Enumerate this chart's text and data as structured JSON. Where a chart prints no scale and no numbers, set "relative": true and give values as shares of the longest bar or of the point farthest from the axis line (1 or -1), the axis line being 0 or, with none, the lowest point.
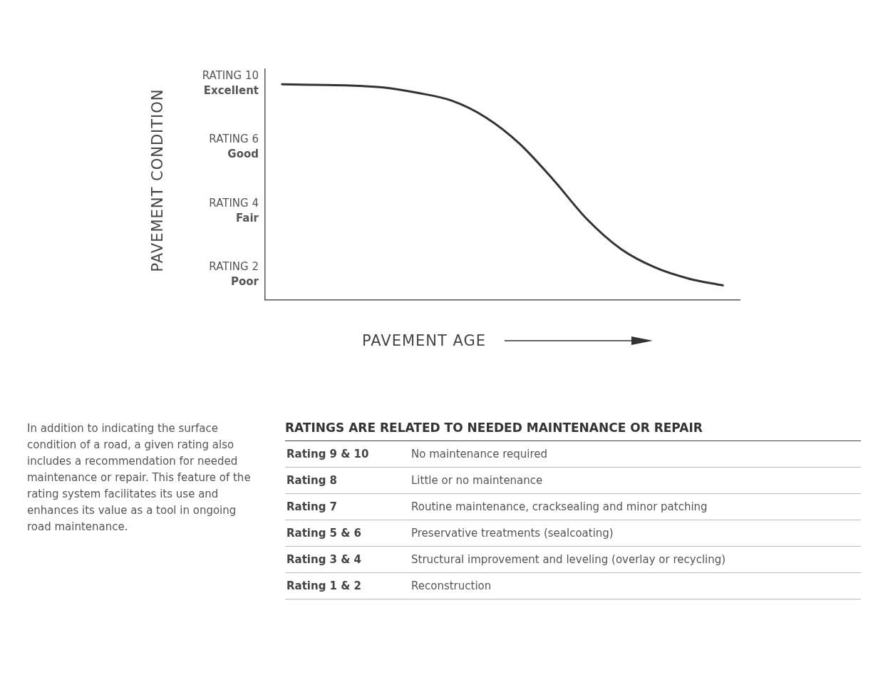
{
  "chart_data": {
    "type": "line",
    "xlabel": "PAVEMENT AGE",
    "relative": true,
    "categories": [
      null,
      null,
      null,
      null,
      null,
      null,
      null,
      null,
      null,
      null,
      null,
      null,
      null,
      null
    ],
    "series": [
      {
        "color": "#333333",
        "values": [
          1.0,
          0.997,
          0.994,
          0.985,
          0.96,
          0.924,
          0.847,
          0.725,
          0.557,
          0.373,
          0.235,
          0.15,
          0.098,
          0.067
        ]
      }
    ],
    "marker": "none",
    "line_style": "solid",
    "annotations": [
      "RATING 10\nExcellent",
      "RATING 6\nGood",
      "RATING 4\nFair",
      "RATING 2\nPoor",
      "PAVEMENT CONDITION",
      "In addition to indicating the surface condition of a road, a given rating also includes a recommendation for needed maintenance or repair. This feature of the rating system facilitates its use and enhances its value as a tool in ongoing road maintenance.",
      "RATINGS ARE RELATED TO NEEDED MAINTENANCE OR REPAIR",
      "Rating 9 & 10",
      "No maintenance required",
      "Rating 8",
      "Little or no maintenance",
      "Rating 7",
      "Routine maintenance, cracksealing and minor patching",
      "Rating 5 & 6",
      "Preservative treatments (sealcoating)",
      "Rating 3 & 4",
      "Structural improvement and leveling (overlay or recycling)",
      "Rating 1 & 2",
      "Reconstruction"
    ]
  }
}
